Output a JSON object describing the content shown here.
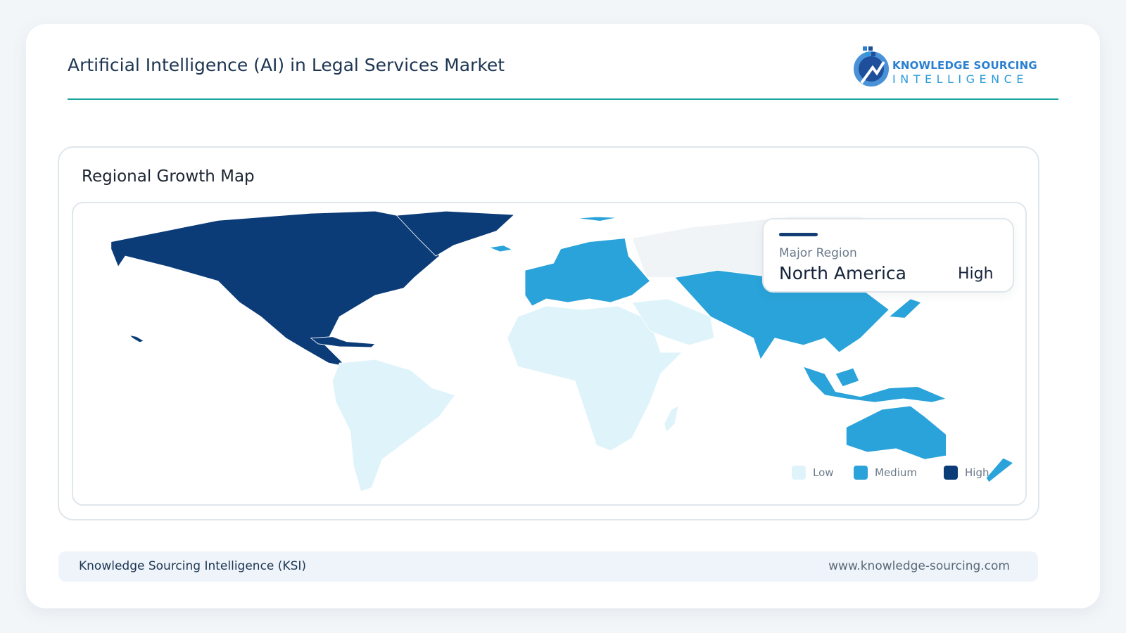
{
  "header": {
    "title": "Artificial Intelligence (AI) in Legal Services Market",
    "logo": {
      "line1": "KNOWLEDGE SOURCING",
      "line2": "INTELLIGENCE"
    }
  },
  "map": {
    "title": "Regional Growth Map",
    "legend": [
      {
        "label": "Low",
        "color": "#dff4fa"
      },
      {
        "label": "Medium",
        "color": "#29a3d9"
      },
      {
        "label": "High",
        "color": "#0b3c78"
      }
    ],
    "callout": {
      "caption": "Major Region",
      "region": "North America",
      "level": "High"
    }
  },
  "footer": {
    "left": "Knowledge Sourcing Intelligence (KSI)",
    "right": "www.knowledge-sourcing.com"
  }
}
